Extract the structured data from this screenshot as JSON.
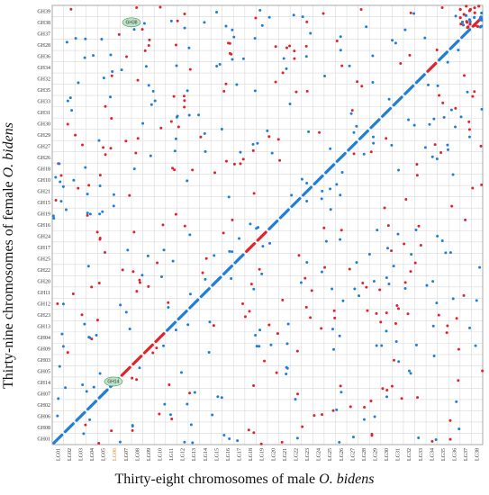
{
  "chart_data": {
    "type": "scatter",
    "xlabel_prefix": "Thirty-eight chromosomes of male ",
    "xlabel_species": "O. bidens",
    "ylabel_prefix": "Thirty-nine chromosomes of female ",
    "ylabel_species": "O. bidens",
    "x_categories": [
      "LG01",
      "LG02",
      "LG03",
      "LG04",
      "LG05",
      "LG06",
      "LG07",
      "LG08",
      "LG09",
      "LG10",
      "LG11",
      "LG12",
      "LG13",
      "LG14",
      "LG15",
      "LG16",
      "LG17",
      "LG18",
      "LG19",
      "LG20",
      "LG21",
      "LG22",
      "LG23",
      "LG24",
      "LG25",
      "LG26",
      "LG27",
      "LG28",
      "LG29",
      "LG30",
      "LG31",
      "LG32",
      "LG33",
      "LG34",
      "LG35",
      "LG36",
      "LG37",
      "LG38"
    ],
    "x_highlight": "LG06",
    "y_categories": [
      "GH01",
      "GH08",
      "GH06",
      "GH02",
      "GH07",
      "GH14",
      "GH05",
      "GH03",
      "GH09",
      "GH04",
      "GH13",
      "GH23",
      "GH12",
      "GH11",
      "GH20",
      "GH22",
      "GH25",
      "GH17",
      "GH24",
      "GH16",
      "GH19",
      "GH15",
      "GH21",
      "GH10",
      "GH18",
      "GH26",
      "GH27",
      "GH29",
      "GH30",
      "GH31",
      "GH33",
      "GH35",
      "GH32",
      "GH34",
      "GH36",
      "GH28",
      "GH37",
      "GH38",
      "GH39"
    ],
    "annotations": [
      {
        "label": "GH14",
        "x": 5.4,
        "y": 5.6
      },
      {
        "label": "GH38",
        "x": 7.0,
        "y": 37.5
      }
    ],
    "series": [
      {
        "color": "#1f7fd8"
      },
      {
        "color": "#e0242c"
      }
    ]
  }
}
